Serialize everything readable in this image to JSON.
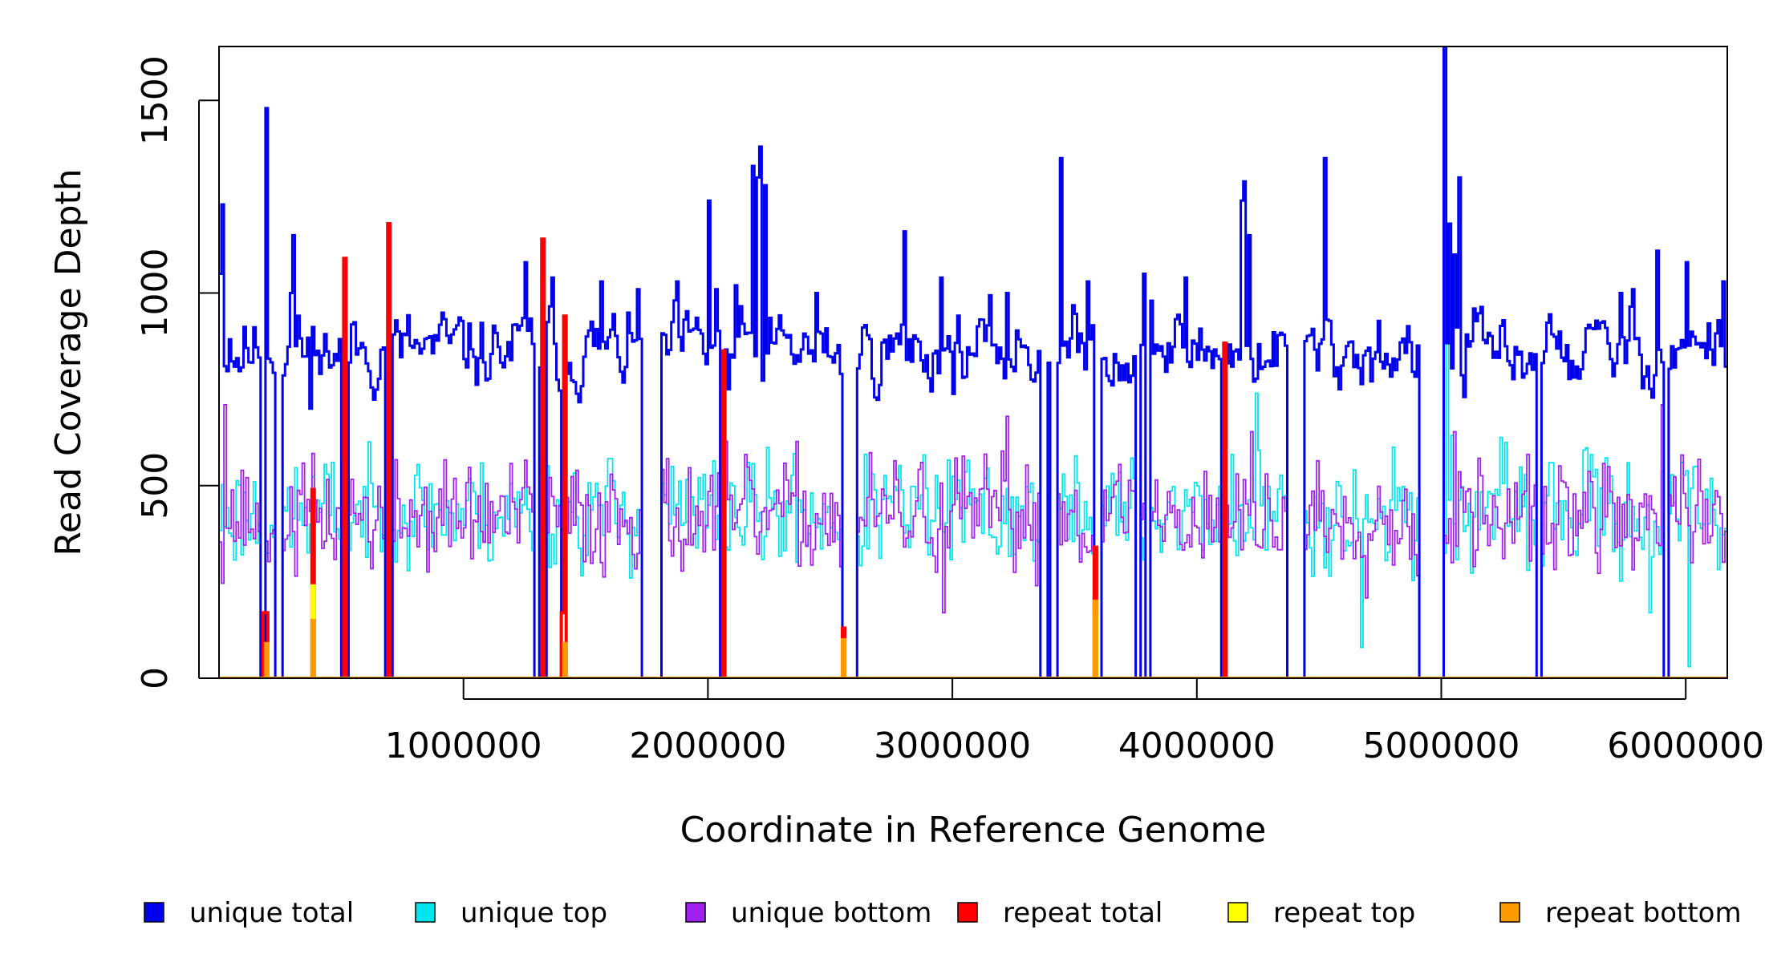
{
  "chart_data": {
    "type": "line",
    "title": "",
    "xlabel": "Coordinate in Reference Genome",
    "ylabel": "Read Coverage Depth",
    "xlim": [
      0,
      6170000
    ],
    "ylim": [
      0,
      1640
    ],
    "x_ticks": [
      {
        "value": 1000000,
        "label": "1000000"
      },
      {
        "value": 2000000,
        "label": "2000000"
      },
      {
        "value": 3000000,
        "label": "3000000"
      },
      {
        "value": 4000000,
        "label": "4000000"
      },
      {
        "value": 5000000,
        "label": "5000000"
      },
      {
        "value": 6000000,
        "label": "6000000"
      }
    ],
    "y_ticks": [
      {
        "value": 0,
        "label": "0"
      },
      {
        "value": 500,
        "label": "500"
      },
      {
        "value": 1000,
        "label": "1000"
      },
      {
        "value": 1500,
        "label": "1500"
      }
    ],
    "bin_width": 10000,
    "series": [
      {
        "name": "unique total",
        "color": "#0000ee",
        "baseline": 850,
        "noise": 95,
        "smooth": 0.55,
        "seed": 11,
        "overrides": [
          [
            0,
            1050
          ],
          [
            10000,
            1230
          ],
          [
            20000,
            810
          ],
          [
            40000,
            880
          ],
          [
            180000,
            1020
          ],
          [
            190000,
            1480
          ],
          [
            210000,
            820
          ],
          [
            250000,
            1110
          ],
          [
            290000,
            1000
          ],
          [
            300000,
            1150
          ],
          [
            370000,
            700
          ],
          [
            400000,
            850
          ],
          [
            520000,
            740
          ],
          [
            680000,
            950
          ],
          [
            1250000,
            1080
          ],
          [
            1300000,
            920
          ],
          [
            1360000,
            1040
          ],
          [
            1560000,
            1030
          ],
          [
            1710000,
            1010
          ],
          [
            1870000,
            1030
          ],
          [
            2000000,
            1240
          ],
          [
            2030000,
            1010
          ],
          [
            2080000,
            750
          ],
          [
            2110000,
            1020
          ],
          [
            2180000,
            1330
          ],
          [
            2200000,
            1300
          ],
          [
            2210000,
            1380
          ],
          [
            2230000,
            1280
          ],
          [
            2440000,
            1000
          ],
          [
            2800000,
            1160
          ],
          [
            2840000,
            890
          ],
          [
            2950000,
            1040
          ],
          [
            3220000,
            1000
          ],
          [
            3440000,
            1350
          ],
          [
            3550000,
            1030
          ],
          [
            3780000,
            1050
          ],
          [
            3810000,
            980
          ],
          [
            3950000,
            1040
          ],
          [
            4180000,
            1240
          ],
          [
            4190000,
            1290
          ],
          [
            4210000,
            1150
          ],
          [
            4380000,
            1030
          ],
          [
            4520000,
            1350
          ],
          [
            4580000,
            750
          ],
          [
            4800000,
            830
          ],
          [
            5010000,
            1640
          ],
          [
            5030000,
            1180
          ],
          [
            5050000,
            1100
          ],
          [
            5070000,
            1300
          ],
          [
            5090000,
            730
          ],
          [
            5400000,
            1050
          ],
          [
            5730000,
            1000
          ],
          [
            5780000,
            1010
          ],
          [
            5880000,
            1110
          ],
          [
            5920000,
            1050
          ],
          [
            6000000,
            1080
          ],
          [
            6150000,
            1030
          ]
        ],
        "zero_ranges": [
          [
            170000,
            180000
          ],
          [
            230000,
            250000
          ],
          [
            500000,
            520000
          ],
          [
            680000,
            700000
          ],
          [
            1290000,
            1300000
          ],
          [
            1320000,
            1330000
          ],
          [
            1400000,
            1410000
          ],
          [
            1730000,
            1800000
          ],
          [
            2050000,
            2060000
          ],
          [
            2550000,
            2600000
          ],
          [
            3360000,
            3380000
          ],
          [
            3400000,
            3420000
          ],
          [
            3580000,
            3600000
          ],
          [
            3750000,
            3760000
          ],
          [
            3790000,
            3800000
          ],
          [
            4100000,
            4110000
          ],
          [
            4370000,
            4430000
          ],
          [
            4910000,
            5000000
          ],
          [
            5390000,
            5400000
          ],
          [
            5910000,
            5920000
          ]
        ]
      },
      {
        "name": "unique top",
        "color": "#00e5ee",
        "baseline": 430,
        "noise": 85,
        "smooth": 0.15,
        "seed": 23,
        "overrides": [
          [
            5020000,
            1000
          ],
          [
            5040000,
            630
          ],
          [
            4240000,
            740
          ],
          [
            4670000,
            80
          ],
          [
            5850000,
            170
          ],
          [
            6010000,
            30
          ]
        ],
        "zero_ranges": [
          [
            170000,
            180000
          ],
          [
            230000,
            250000
          ],
          [
            500000,
            520000
          ],
          [
            680000,
            700000
          ],
          [
            1290000,
            1300000
          ],
          [
            1320000,
            1330000
          ],
          [
            1400000,
            1410000
          ],
          [
            1730000,
            1800000
          ],
          [
            2050000,
            2060000
          ],
          [
            2550000,
            2600000
          ],
          [
            3360000,
            3380000
          ],
          [
            3400000,
            3420000
          ],
          [
            3580000,
            3600000
          ],
          [
            3750000,
            3760000
          ],
          [
            3790000,
            3800000
          ],
          [
            4100000,
            4110000
          ],
          [
            4370000,
            4430000
          ],
          [
            4910000,
            5000000
          ],
          [
            5390000,
            5400000
          ],
          [
            5910000,
            5920000
          ]
        ]
      },
      {
        "name": "unique bottom",
        "color": "#a020f0",
        "baseline": 420,
        "noise": 85,
        "smooth": 0.15,
        "seed": 37,
        "overrides": [
          [
            20000,
            710
          ],
          [
            2060000,
            860
          ],
          [
            3220000,
            680
          ],
          [
            4220000,
            640
          ],
          [
            5050000,
            640
          ],
          [
            5130000,
            290
          ],
          [
            2960000,
            170
          ],
          [
            5910000,
            710
          ],
          [
            5900000,
            710
          ]
        ],
        "zero_ranges": [
          [
            170000,
            180000
          ],
          [
            230000,
            250000
          ],
          [
            500000,
            520000
          ],
          [
            680000,
            700000
          ],
          [
            1290000,
            1300000
          ],
          [
            1320000,
            1330000
          ],
          [
            1400000,
            1410000
          ],
          [
            1730000,
            1800000
          ],
          [
            2050000,
            2060000
          ],
          [
            2550000,
            2600000
          ],
          [
            3360000,
            3380000
          ],
          [
            3400000,
            3420000
          ],
          [
            3580000,
            3600000
          ],
          [
            3750000,
            3760000
          ],
          [
            3790000,
            3800000
          ],
          [
            4100000,
            4110000
          ],
          [
            4370000,
            4430000
          ],
          [
            4910000,
            5000000
          ],
          [
            5390000,
            5400000
          ],
          [
            5910000,
            5920000
          ]
        ]
      },
      {
        "name": "repeat total",
        "color": "#ff0000",
        "baseline": 0,
        "noise": 0,
        "smooth": 0,
        "seed": 1,
        "spikes": [
          [
            180000,
            170
          ],
          [
            190000,
            170
          ],
          [
            380000,
            490
          ],
          [
            510000,
            1090
          ],
          [
            690000,
            1180
          ],
          [
            1320000,
            1140
          ],
          [
            1410000,
            940
          ],
          [
            1400000,
            170
          ],
          [
            2060000,
            850
          ],
          [
            2550000,
            130
          ],
          [
            3580000,
            340
          ],
          [
            4110000,
            870
          ]
        ]
      },
      {
        "name": "repeat top",
        "color": "#ffff00",
        "baseline": 0,
        "noise": 0,
        "smooth": 0,
        "seed": 2,
        "spikes": [
          [
            190000,
            80
          ],
          [
            380000,
            240
          ],
          [
            3580000,
            160
          ]
        ]
      },
      {
        "name": "repeat bottom",
        "color": "#ff9900",
        "baseline": 0,
        "noise": 0,
        "smooth": 0,
        "seed": 3,
        "spikes": [
          [
            190000,
            90
          ],
          [
            380000,
            150
          ],
          [
            1410000,
            90
          ],
          [
            2550000,
            100
          ],
          [
            3580000,
            200
          ]
        ]
      }
    ],
    "legend_position": "bottom"
  }
}
